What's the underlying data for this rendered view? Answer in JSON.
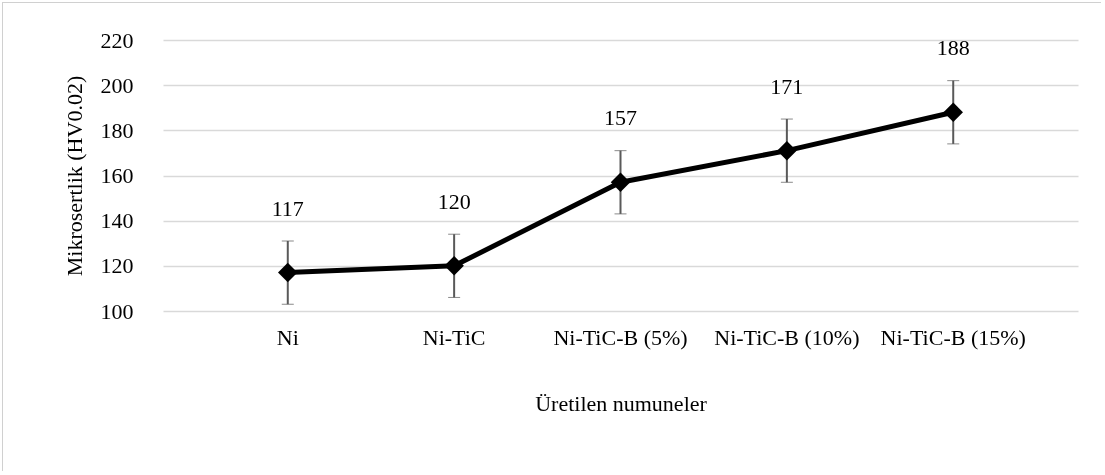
{
  "chart_data": {
    "type": "line",
    "xlabel": "Üretilen numuneler",
    "ylabel": "Mikrosertlik  (HV0.02)",
    "categories": [
      "Ni",
      "Ni-TiC",
      "Ni-TiC-B (5%)",
      "Ni-TiC-B (10%)",
      "Ni-TiC-B (15%)"
    ],
    "series": [
      {
        "color": "#000000",
        "values": [
          117,
          120,
          157,
          171,
          188
        ],
        "errors": [
          14,
          14,
          14,
          14,
          14
        ]
      }
    ],
    "ylim": [
      100,
      220
    ],
    "yticks": [
      100,
      120,
      140,
      160,
      180,
      200,
      220
    ],
    "grid": "y",
    "marker": "diamond",
    "line_style": "solid",
    "data_labels": true,
    "legend": false
  }
}
